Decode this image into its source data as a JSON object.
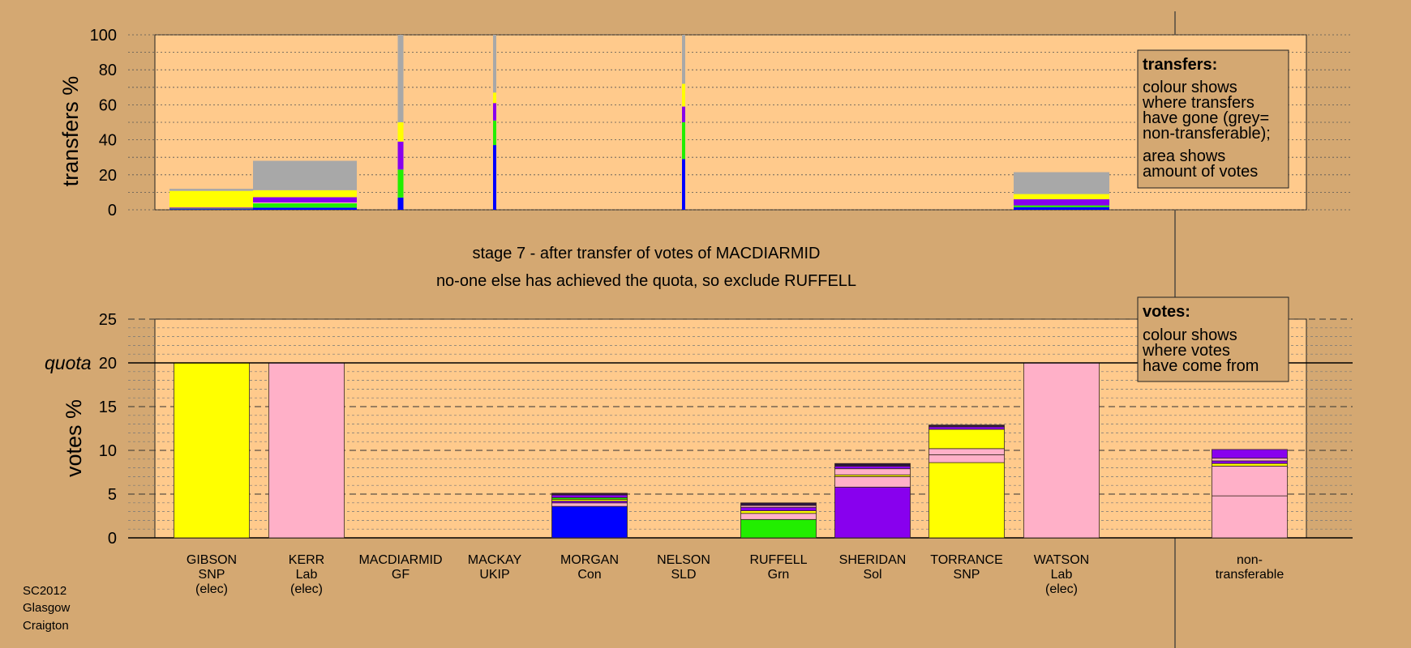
{
  "footer": [
    "SC2012",
    "Glasgow",
    "Craigton"
  ],
  "chart_data": [
    {
      "type": "bar",
      "ylabel": "transfers %",
      "ylim": [
        0,
        100
      ],
      "yticks": [
        0,
        20,
        40,
        60,
        80,
        100
      ],
      "legend": {
        "title": "transfers:",
        "lines": [
          "colour shows",
          "where transfers",
          "have gone (grey=",
          "non-transferable);"
        ],
        "lines2": [
          "area shows",
          "amount of votes"
        ]
      },
      "colors": {
        "SNP": "#ffff00",
        "Lab": "#ffb0c8",
        "Con": "#0000ff",
        "Grn": "#22ee00",
        "Sol": "#8800ee",
        "nontransferable": "#a8a8a8",
        "dark": "#2a1440"
      },
      "bars": [
        {
          "candidate": "GIBSON",
          "segments": [
            {
              "source": "Con",
              "value": 0.4
            },
            {
              "source": "Grn",
              "value": 0.3
            },
            {
              "source": "Sol",
              "value": 0.6
            },
            {
              "source": "SNP",
              "value": 9.5
            },
            {
              "source": "nontransferable",
              "value": 1.2
            }
          ]
        },
        {
          "candidate": "KERR",
          "segments": [
            {
              "source": "Con",
              "value": 1.2
            },
            {
              "source": "Grn",
              "value": 2.5
            },
            {
              "source": "Lab",
              "value": 0.5
            },
            {
              "source": "Sol",
              "value": 3.0
            },
            {
              "source": "SNP",
              "value": 4.0
            },
            {
              "source": "nontransferable",
              "value": 16.8
            }
          ]
        },
        {
          "candidate": "MACDIARMID",
          "segments": [
            {
              "source": "Con",
              "value": 7
            },
            {
              "source": "Grn",
              "value": 16
            },
            {
              "source": "Sol",
              "value": 16
            },
            {
              "source": "SNP",
              "value": 11
            },
            {
              "source": "nontransferable",
              "value": 50
            }
          ]
        },
        {
          "candidate": "MACKAY",
          "segments": [
            {
              "source": "Con",
              "value": 37
            },
            {
              "source": "Grn",
              "value": 14
            },
            {
              "source": "Sol",
              "value": 10
            },
            {
              "source": "SNP",
              "value": 6
            },
            {
              "source": "nontransferable",
              "value": 33
            }
          ]
        },
        {
          "candidate": "NELSON",
          "segments": [
            {
              "source": "Con",
              "value": 29
            },
            {
              "source": "Grn",
              "value": 21
            },
            {
              "source": "Sol",
              "value": 9
            },
            {
              "source": "SNP",
              "value": 13
            },
            {
              "source": "nontransferable",
              "value": 28
            }
          ]
        },
        {
          "candidate": "WATSON",
          "segments": [
            {
              "source": "Con",
              "value": 1.5
            },
            {
              "source": "Grn",
              "value": 1.0
            },
            {
              "source": "Sol",
              "value": 3.5
            },
            {
              "source": "SNP",
              "value": 3.0
            },
            {
              "source": "nontransferable",
              "value": 12.5
            }
          ]
        }
      ]
    },
    {
      "type": "bar",
      "stacked": true,
      "title": "stage 7 - after transfer of votes of MACDIARMID",
      "subtitle": "no-one else has achieved the quota, so exclude RUFFELL",
      "ylabel": "votes %",
      "ylim": [
        0,
        25
      ],
      "yticks": [
        0,
        5,
        10,
        15,
        20,
        25
      ],
      "quota_label": "quota",
      "quota": 20,
      "legend": {
        "title": "votes:",
        "lines": [
          "colour shows",
          "where votes",
          "have come from"
        ]
      },
      "categories": [
        {
          "name": "GIBSON",
          "party": "SNP",
          "note": "(elec)",
          "segments": [
            {
              "source": "SNP",
              "value": 20
            }
          ]
        },
        {
          "name": "KERR",
          "party": "Lab",
          "note": "(elec)",
          "segments": [
            {
              "source": "Lab",
              "value": 20
            }
          ]
        },
        {
          "name": "MACDIARMID",
          "party": "GF",
          "note": "",
          "segments": []
        },
        {
          "name": "MACKAY",
          "party": "UKIP",
          "note": "",
          "segments": []
        },
        {
          "name": "MORGAN",
          "party": "Con",
          "note": "",
          "segments": [
            {
              "source": "Con",
              "value": 3.6
            },
            {
              "source": "Lab",
              "value": 0.4
            },
            {
              "source": "Sol",
              "value": 0.2
            },
            {
              "source": "SNP",
              "value": 0.2
            },
            {
              "source": "Grn",
              "value": 0.2
            },
            {
              "source": "Sol",
              "value": 0.3
            },
            {
              "source": "dark",
              "value": 0.2
            }
          ]
        },
        {
          "name": "NELSON",
          "party": "SLD",
          "note": "",
          "segments": []
        },
        {
          "name": "RUFFELL",
          "party": "Grn",
          "note": "",
          "segments": [
            {
              "source": "Grn",
              "value": 2.1
            },
            {
              "source": "Lab",
              "value": 0.7
            },
            {
              "source": "SNP",
              "value": 0.3
            },
            {
              "source": "Sol",
              "value": 0.4
            },
            {
              "source": "Lab",
              "value": 0.2
            },
            {
              "source": "dark",
              "value": 0.3
            }
          ]
        },
        {
          "name": "SHERIDAN",
          "party": "Sol",
          "note": "",
          "segments": [
            {
              "source": "Sol",
              "value": 5.8
            },
            {
              "source": "Lab",
              "value": 1.2
            },
            {
              "source": "SNP",
              "value": 0.2
            },
            {
              "source": "Lab",
              "value": 0.7
            },
            {
              "source": "Sol",
              "value": 0.3
            },
            {
              "source": "dark",
              "value": 0.3
            }
          ]
        },
        {
          "name": "TORRANCE",
          "party": "SNP",
          "note": "",
          "segments": [
            {
              "source": "SNP",
              "value": 8.6
            },
            {
              "source": "Lab",
              "value": 0.9
            },
            {
              "source": "Lab",
              "value": 0.7
            },
            {
              "source": "SNP",
              "value": 2.2
            },
            {
              "source": "Sol",
              "value": 0.3
            },
            {
              "source": "dark",
              "value": 0.2
            }
          ]
        },
        {
          "name": "WATSON",
          "party": "Lab",
          "note": "(elec)",
          "segments": [
            {
              "source": "Lab",
              "value": 20
            }
          ]
        },
        {
          "name": "",
          "party": "",
          "note": "",
          "segments": []
        },
        {
          "name": "non-",
          "party": "transferable",
          "note": "",
          "segments": [
            {
              "source": "Lab",
              "value": 4.8
            },
            {
              "source": "Lab",
              "value": 3.4
            },
            {
              "source": "SNP",
              "value": 0.3
            },
            {
              "source": "Sol",
              "value": 0.3
            },
            {
              "source": "Lab",
              "value": 0.3
            },
            {
              "source": "Sol",
              "value": 1.0
            }
          ]
        }
      ]
    }
  ]
}
